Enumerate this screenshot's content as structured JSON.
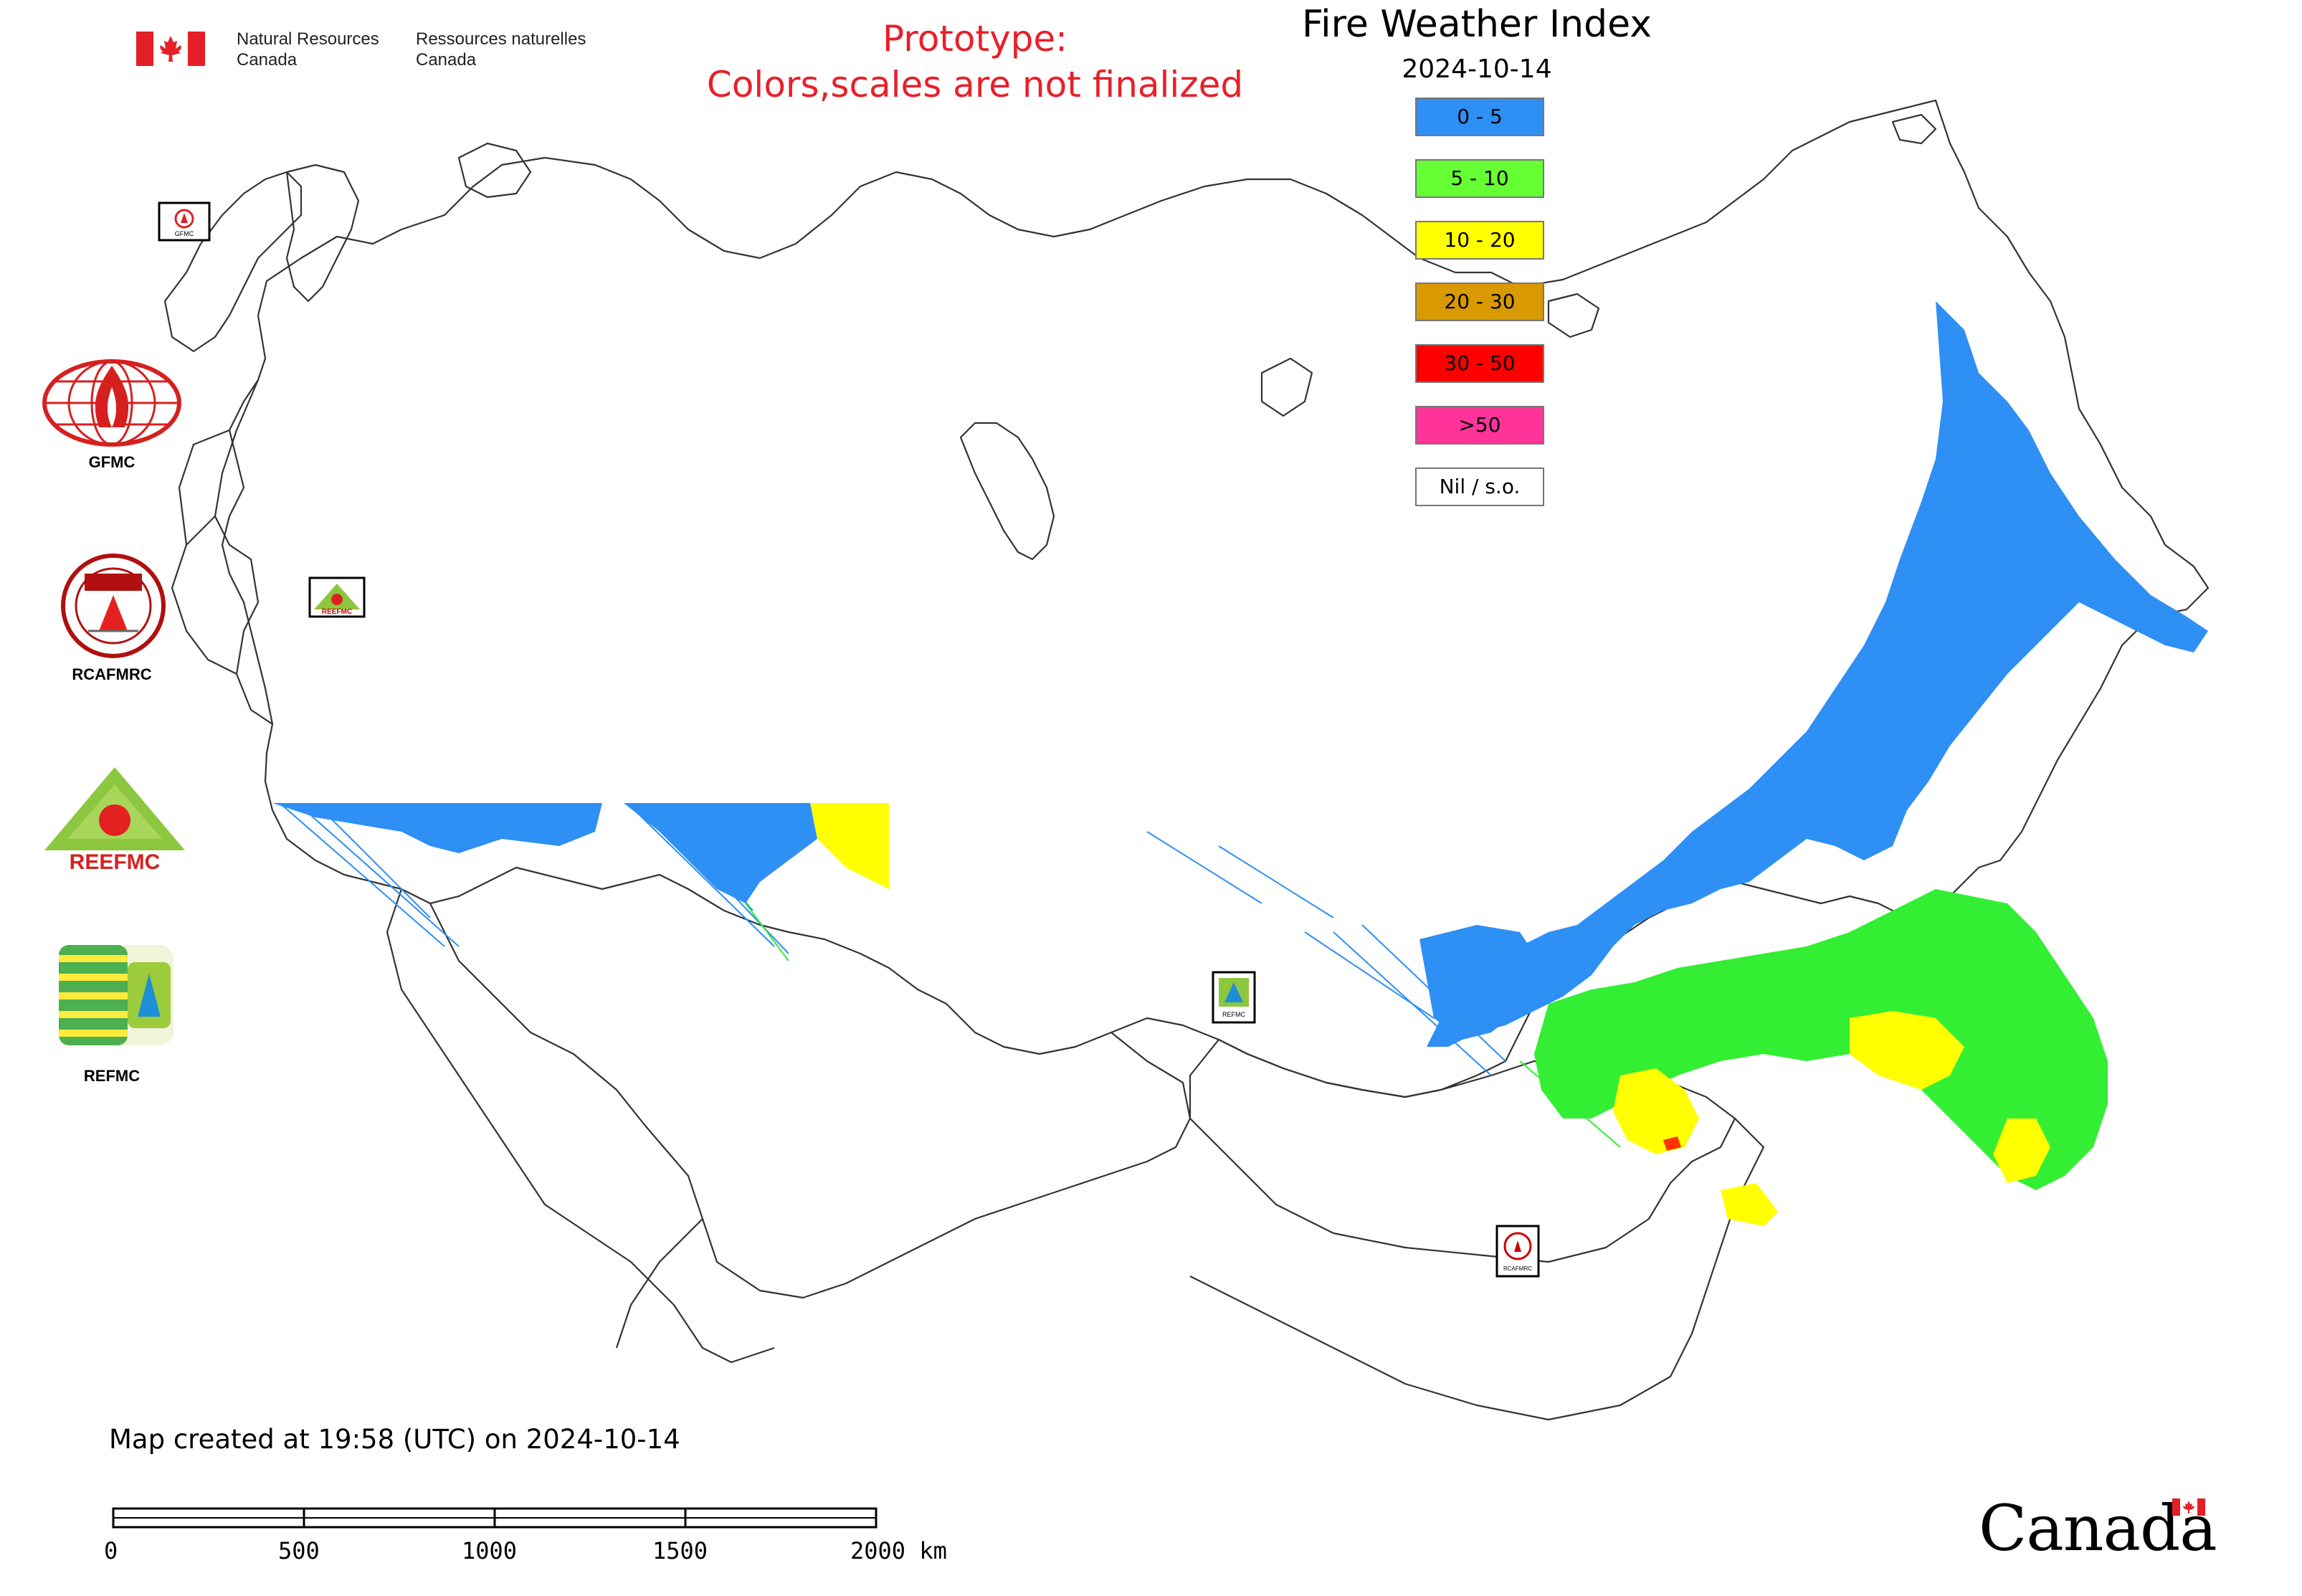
{
  "header": {
    "org_en": [
      "Natural Resources",
      "Canada"
    ],
    "org_fr": [
      "Ressources naturelles",
      "Canada"
    ],
    "prototype_note": [
      "Prototype:",
      "Colors,scales are not finalized"
    ]
  },
  "map": {
    "title": "Fire Weather Index",
    "date": "2024-10-14",
    "legend": [
      {
        "label": "0 - 5",
        "color": "#2e8ff5"
      },
      {
        "label": "5 - 10",
        "color": "#66ff33"
      },
      {
        "label": "10 - 20",
        "color": "#ffff00"
      },
      {
        "label": "20 - 30",
        "color": "#d89a00"
      },
      {
        "label": "30 - 50",
        "color": "#ff0000"
      },
      {
        "label": ">50",
        "color": "#ff3399"
      },
      {
        "label": "Nil / s.o.",
        "color": "#ffffff"
      }
    ]
  },
  "logos": [
    {
      "name": "GFMC",
      "icon": "gfmc-logo-icon"
    },
    {
      "name": "RCAFMRC",
      "icon": "rcafmrc-logo-icon"
    },
    {
      "name": "",
      "icon": "reefmc-logo-icon",
      "wordmark": "REEFMC"
    },
    {
      "name": "REFMC",
      "icon": "refmc-logo-icon"
    }
  ],
  "map_markers": [
    {
      "label": "GFMC",
      "icon": "gfmc-marker-icon"
    },
    {
      "label": "REEFMC",
      "icon": "reefmc-marker-icon"
    },
    {
      "label": "REFMC",
      "icon": "refmc-marker-icon"
    },
    {
      "label": "RCAFMRC",
      "icon": "rcafmrc-marker-icon"
    }
  ],
  "footer": {
    "created": "Map created at 19:58 (UTC) on 2024-10-14",
    "scale_ticks": [
      "0",
      "500",
      "1000",
      "1500",
      "2000 km"
    ],
    "wordmark": "Canada"
  }
}
